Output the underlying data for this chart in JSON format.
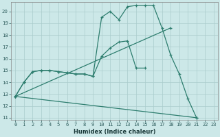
{
  "xlabel": "Humidex (Indice chaleur)",
  "bg_color": "#cce8e8",
  "grid_color": "#aacccc",
  "line_color": "#2d7d6e",
  "xlim": [
    -0.5,
    23.5
  ],
  "ylim": [
    10.8,
    20.8
  ],
  "yticks": [
    11,
    12,
    13,
    14,
    15,
    16,
    17,
    18,
    19,
    20
  ],
  "xticks": [
    0,
    1,
    2,
    3,
    4,
    5,
    6,
    7,
    8,
    9,
    10,
    11,
    12,
    13,
    14,
    15,
    16,
    17,
    18,
    19,
    20,
    21,
    22,
    23
  ],
  "line1_x": [
    0,
    1,
    2,
    3,
    4,
    5,
    6,
    7,
    8,
    9,
    10,
    11,
    12,
    13,
    14,
    15,
    16,
    17,
    18,
    19,
    20,
    21
  ],
  "line1_y": [
    12.8,
    14.0,
    14.9,
    15.0,
    15.0,
    14.9,
    14.8,
    14.7,
    14.7,
    14.5,
    19.5,
    20.0,
    19.3,
    20.4,
    20.5,
    20.5,
    20.5,
    18.6,
    16.3,
    14.7,
    12.6,
    11.0
  ],
  "line2_x": [
    0,
    1,
    2,
    3,
    4,
    5,
    6,
    7,
    8,
    9,
    10,
    11,
    12,
    13,
    14,
    15
  ],
  "line2_y": [
    12.8,
    14.0,
    14.9,
    15.0,
    15.0,
    14.9,
    14.8,
    14.7,
    14.7,
    14.5,
    16.2,
    16.9,
    17.4,
    17.5,
    15.2,
    15.2
  ],
  "line3_x": [
    0,
    21
  ],
  "line3_y": [
    12.8,
    11.0
  ],
  "line4_x": [
    0,
    18
  ],
  "line4_y": [
    12.8,
    18.6
  ]
}
